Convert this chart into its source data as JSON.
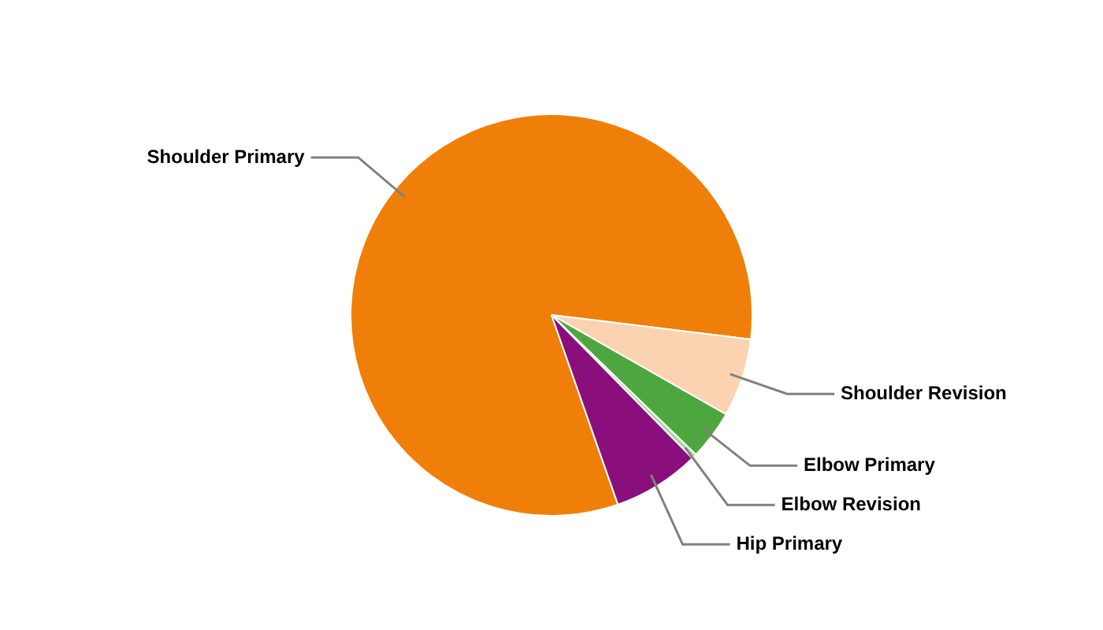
{
  "chart_data": {
    "type": "pie",
    "categories": [
      "Shoulder Primary",
      "Shoulder Revision",
      "Elbow Primary",
      "Elbow Revision",
      "Hip Primary"
    ],
    "values": [
      82.3,
      6.3,
      4,
      0.4,
      7
    ],
    "colors": [
      "#f07f09",
      "#fcd3b0",
      "#4ea63f",
      "#a8d8a0",
      "#8b0e7d"
    ],
    "legend": false
  }
}
